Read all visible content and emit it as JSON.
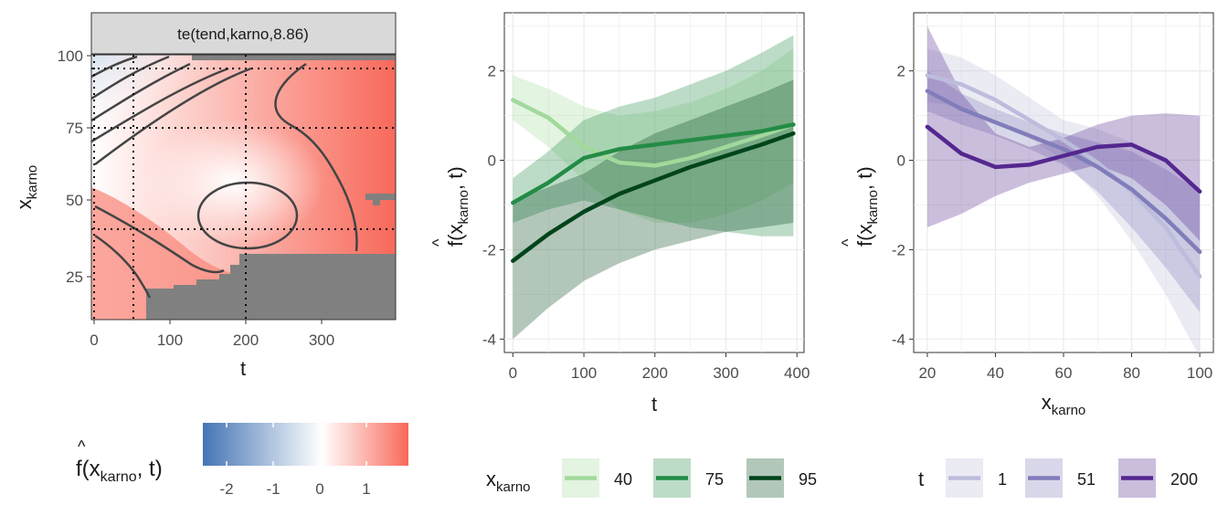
{
  "chart_data": [
    {
      "type": "heatmap",
      "strip_title": "te(tend,karno,8.86)",
      "xlabel": "t",
      "ylabel_main": "x",
      "ylabel_sub": "karno",
      "xlim": [
        -3,
        395
      ],
      "ylim": [
        9,
        104
      ],
      "xticks": [
        "0",
        "100",
        "200",
        "300"
      ],
      "yticks": [
        "25",
        "50",
        "75",
        "100"
      ],
      "reference_lines": {
        "t": [
          1,
          51,
          200
        ],
        "x_karno": [
          40,
          75,
          95
        ]
      },
      "colorbar": {
        "title": "f(x_karno, t)",
        "ticks": [
          "-2",
          "-1",
          "0",
          "1"
        ],
        "low": "#4575b4",
        "mid": "#ffffff",
        "high": "#f8695a",
        "range": [
          -2.5,
          1.8
        ]
      },
      "colors": {
        "na_fill": "#808080",
        "contour": "#444444"
      }
    },
    {
      "type": "line",
      "xlabel": "t",
      "ylabel": "f(x_karno, t)",
      "xlim": [
        -12,
        410
      ],
      "ylim": [
        -4.3,
        3.3
      ],
      "xticks": [
        "0",
        "100",
        "200",
        "300",
        "400"
      ],
      "yticks": [
        "-4",
        "-2",
        "0",
        "2"
      ],
      "legend": {
        "title_main": "x",
        "title_sub": "karno",
        "position": "bottom"
      },
      "x": [
        0,
        50,
        100,
        150,
        200,
        250,
        300,
        350,
        395
      ],
      "series": [
        {
          "name": "40",
          "color": "#a1d99b",
          "values": [
            1.35,
            0.95,
            0.3,
            -0.05,
            -0.12,
            0.05,
            0.3,
            0.55,
            0.8
          ],
          "lower": [
            0.9,
            0.3,
            -0.45,
            -1.1,
            -1.4,
            -1.4,
            -1.2,
            -0.9,
            -0.5
          ],
          "upper": [
            1.9,
            1.6,
            1.2,
            1.0,
            1.1,
            1.3,
            1.6,
            2.0,
            2.5
          ]
        },
        {
          "name": "75",
          "color": "#238b45",
          "values": [
            -0.95,
            -0.5,
            0.05,
            0.25,
            0.35,
            0.45,
            0.55,
            0.65,
            0.8
          ],
          "lower": [
            -1.4,
            -1.1,
            -0.9,
            -1.1,
            -1.3,
            -1.5,
            -1.6,
            -1.7,
            -1.7
          ],
          "upper": [
            -0.4,
            0.2,
            0.9,
            1.2,
            1.4,
            1.7,
            2.0,
            2.4,
            2.8
          ]
        },
        {
          "name": "95",
          "color": "#00441b",
          "values": [
            -2.25,
            -1.65,
            -1.15,
            -0.75,
            -0.45,
            -0.15,
            0.1,
            0.35,
            0.6
          ],
          "lower": [
            -4.0,
            -3.3,
            -2.7,
            -2.3,
            -2.0,
            -1.8,
            -1.6,
            -1.5,
            -1.4
          ],
          "upper": [
            -0.9,
            -0.6,
            -0.3,
            0.2,
            0.6,
            0.9,
            1.2,
            1.5,
            1.8
          ]
        }
      ]
    },
    {
      "type": "line",
      "xlabel_main": "x",
      "xlabel_sub": "karno",
      "ylabel": "f(x_karno, t)",
      "xlim": [
        16,
        104
      ],
      "ylim": [
        -4.3,
        3.3
      ],
      "xticks": [
        "20",
        "40",
        "60",
        "80",
        "100"
      ],
      "yticks": [
        "-4",
        "-2",
        "0",
        "2"
      ],
      "legend": {
        "title": "t",
        "position": "bottom"
      },
      "x": [
        20,
        30,
        40,
        50,
        60,
        70,
        80,
        90,
        100
      ],
      "series": [
        {
          "name": "1",
          "color": "#bcbddc",
          "values": [
            1.9,
            1.7,
            1.35,
            0.9,
            0.45,
            -0.05,
            -0.7,
            -1.5,
            -2.6
          ],
          "lower": [
            1.3,
            1.2,
            0.9,
            0.5,
            0.0,
            -0.8,
            -1.8,
            -3.0,
            -4.4
          ],
          "upper": [
            2.5,
            2.3,
            1.9,
            1.4,
            0.9,
            0.7,
            0.4,
            0.0,
            -0.8
          ]
        },
        {
          "name": "51",
          "color": "#807dba",
          "values": [
            1.55,
            1.15,
            0.85,
            0.55,
            0.25,
            -0.15,
            -0.65,
            -1.3,
            -2.05
          ],
          "lower": [
            1.1,
            0.8,
            0.55,
            0.25,
            -0.1,
            -0.7,
            -1.5,
            -2.4,
            -3.4
          ],
          "upper": [
            2.0,
            1.5,
            1.15,
            0.85,
            0.6,
            0.4,
            0.2,
            -0.2,
            -0.7
          ]
        },
        {
          "name": "200",
          "color": "#54278f",
          "values": [
            0.75,
            0.15,
            -0.15,
            -0.1,
            0.1,
            0.3,
            0.35,
            0.0,
            -0.7
          ],
          "lower": [
            -1.5,
            -1.2,
            -0.8,
            -0.5,
            -0.3,
            -0.1,
            -0.4,
            -1.0,
            -1.8
          ],
          "upper": [
            3.0,
            1.5,
            0.6,
            0.3,
            0.5,
            0.8,
            1.0,
            1.05,
            1.0
          ]
        }
      ]
    }
  ]
}
